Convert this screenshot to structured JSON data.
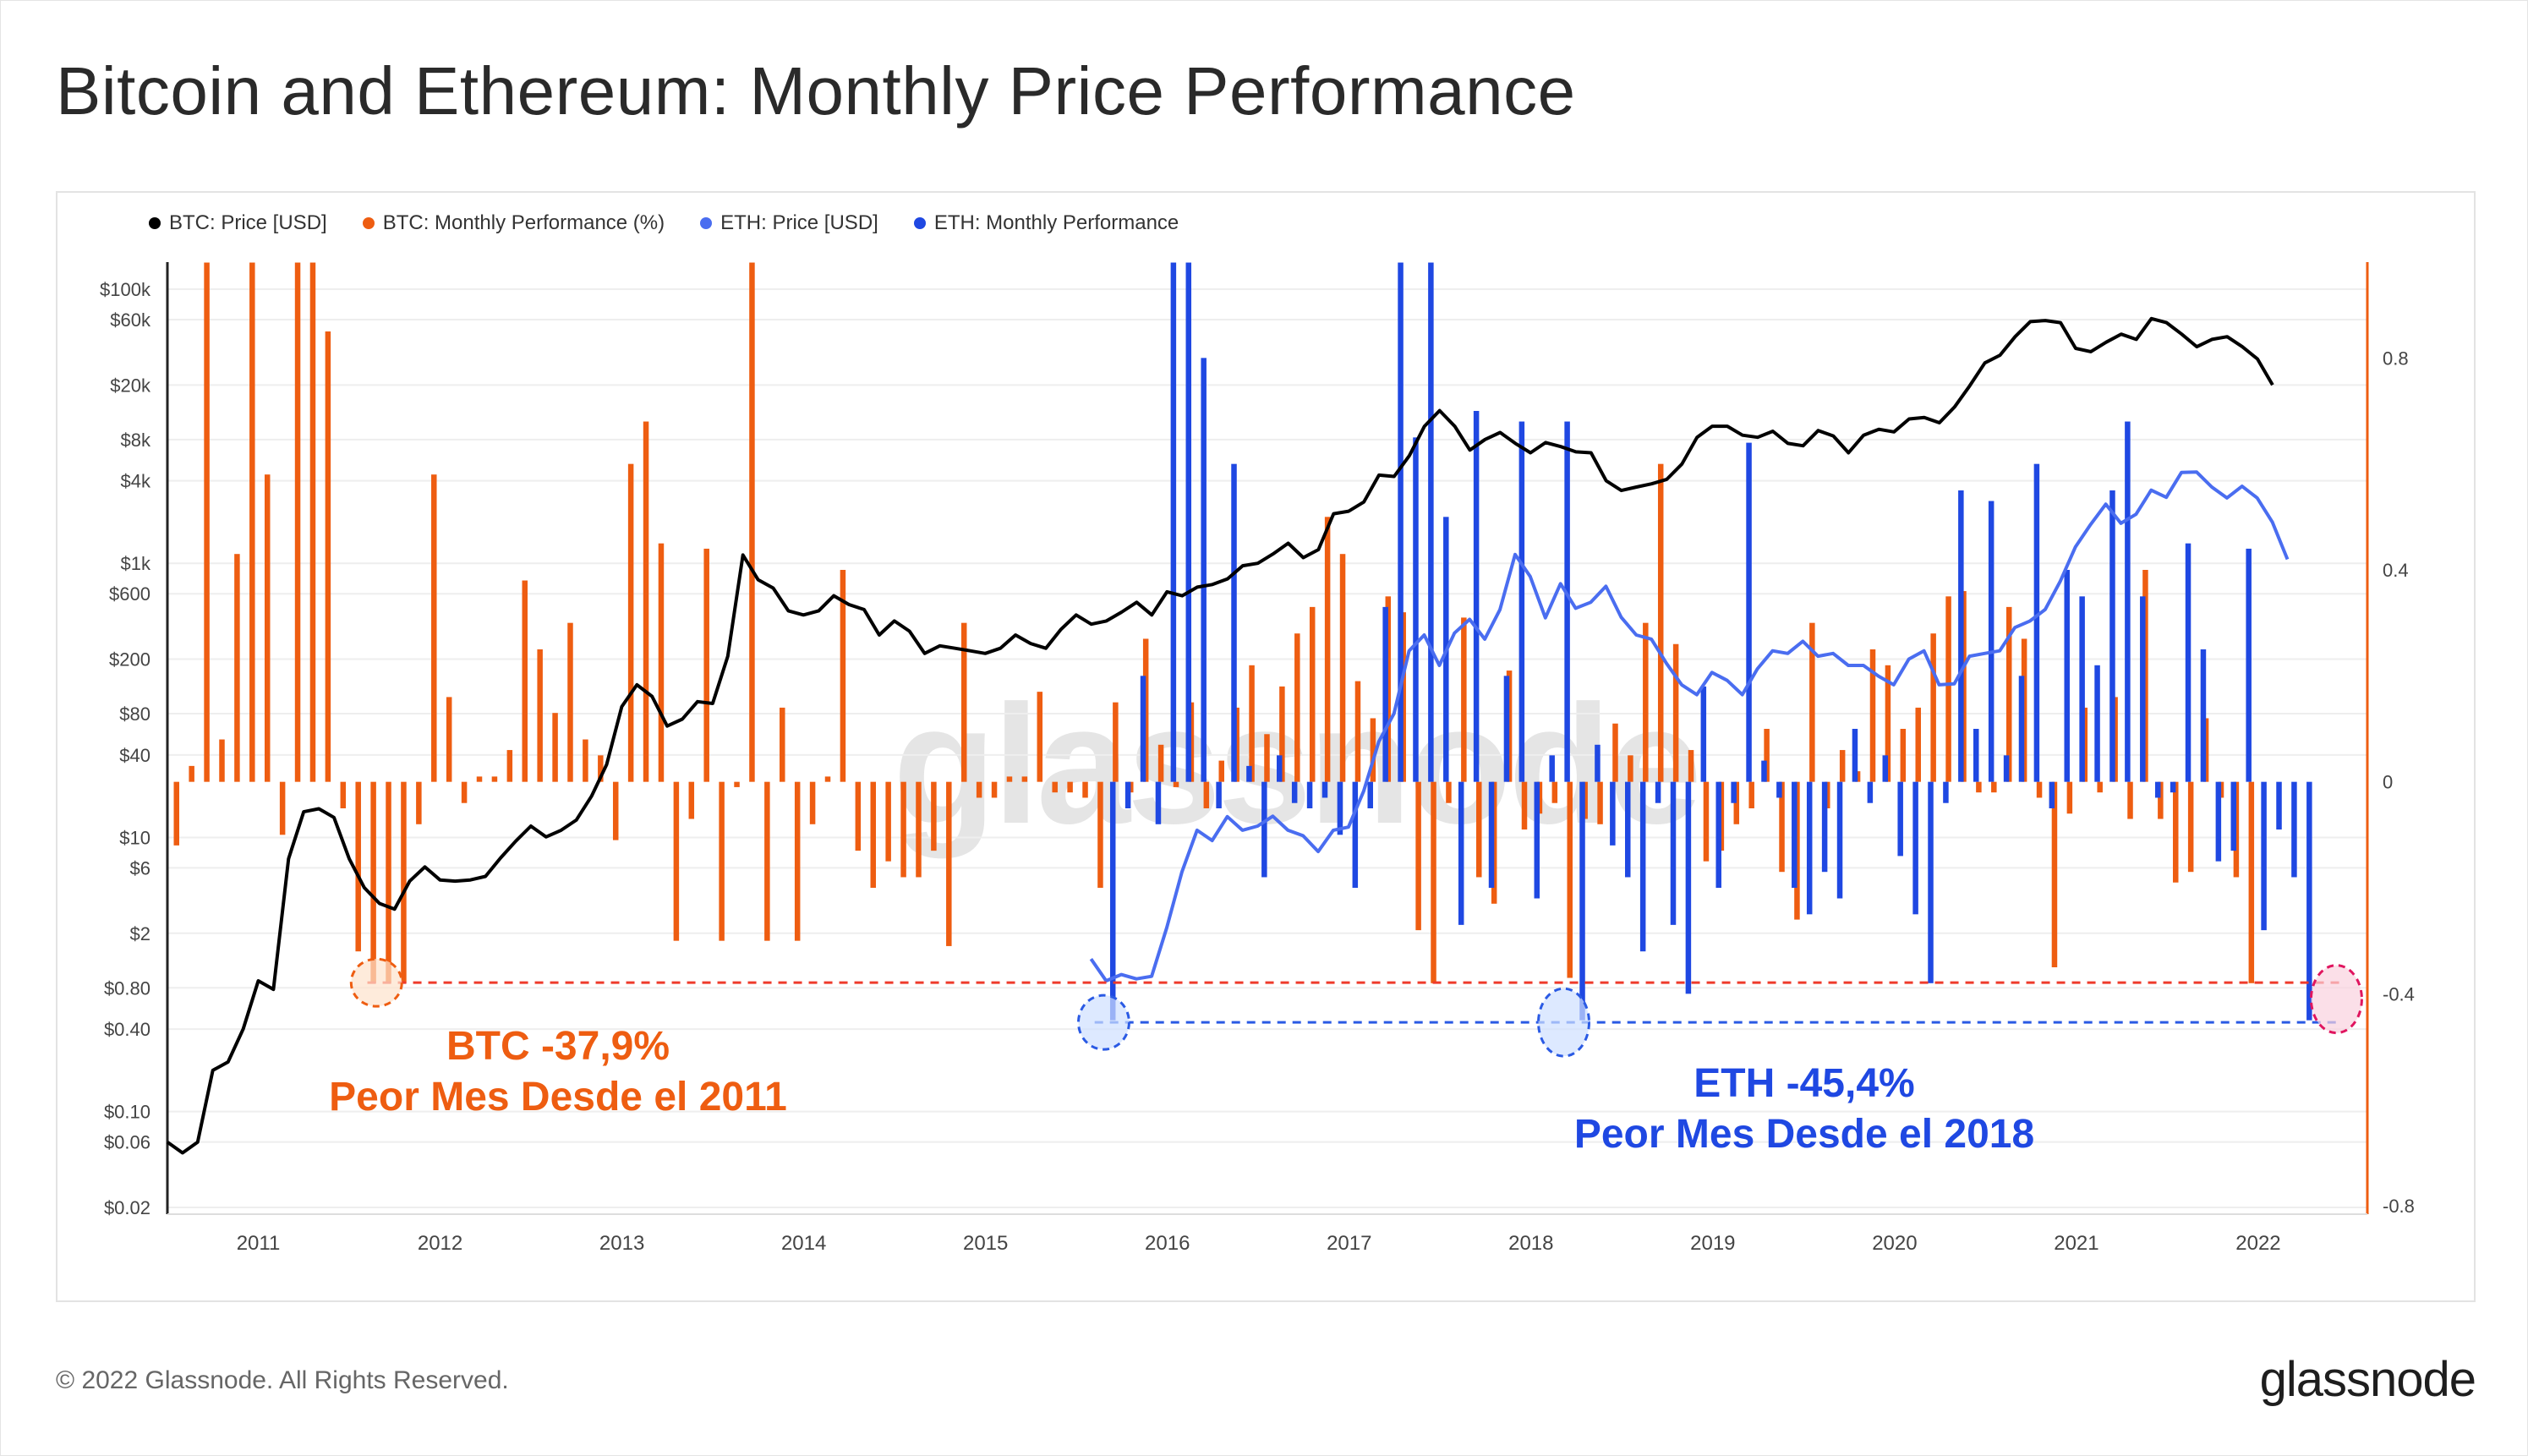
{
  "title": "Bitcoin and Ethereum: Monthly Price Performance",
  "footer": {
    "copyright": "© 2022 Glassnode. All Rights Reserved.",
    "brand": "glassnode"
  },
  "watermark": "glassnode",
  "colors": {
    "btc_price": "#000000",
    "btc_perf": "#ee5d11",
    "eth_price": "#4a6df0",
    "eth_perf": "#1f48e2",
    "btc_ref": "#ee3b2b",
    "eth_ref": "#2a5ae4",
    "highlight": "#f07fa0"
  },
  "legend": [
    {
      "label": "BTC: Price [USD]",
      "color": "#000000"
    },
    {
      "label": "BTC: Monthly Performance (%)",
      "color": "#ee5d11"
    },
    {
      "label": "ETH: Price [USD]",
      "color": "#4a6df0"
    },
    {
      "label": "ETH: Monthly Performance",
      "color": "#1f48e2"
    }
  ],
  "annotations": {
    "btc_line1": "BTC -37,9%",
    "btc_line2": "Peor Mes Desde el 2011",
    "eth_line1": "ETH -45,4%",
    "eth_line2": "Peor Mes Desde el 2018"
  },
  "chart_data": {
    "type": "bar+line",
    "title": "Bitcoin and Ethereum: Monthly Price Performance",
    "x_range": [
      2010.5,
      2022.6
    ],
    "x_ticks": [
      2011,
      2012,
      2013,
      2014,
      2015,
      2016,
      2017,
      2018,
      2019,
      2020,
      2021,
      2022
    ],
    "left_axis": {
      "scale": "log",
      "unit": "USD",
      "range": [
        0.02,
        100000
      ],
      "ticks": [
        {
          "v": 0.02,
          "label": "$0.02"
        },
        {
          "v": 0.06,
          "label": "$0.06"
        },
        {
          "v": 0.1,
          "label": "$0.10"
        },
        {
          "v": 0.4,
          "label": "$0.40"
        },
        {
          "v": 0.8,
          "label": "$0.80"
        },
        {
          "v": 2,
          "label": "$2"
        },
        {
          "v": 6,
          "label": "$6"
        },
        {
          "v": 10,
          "label": "$10"
        },
        {
          "v": 40,
          "label": "$40"
        },
        {
          "v": 80,
          "label": "$80"
        },
        {
          "v": 200,
          "label": "$200"
        },
        {
          "v": 600,
          "label": "$600"
        },
        {
          "v": 1000,
          "label": "$1k"
        },
        {
          "v": 4000,
          "label": "$4k"
        },
        {
          "v": 8000,
          "label": "$8k"
        },
        {
          "v": 20000,
          "label": "$20k"
        },
        {
          "v": 60000,
          "label": "$60k"
        },
        {
          "v": 100000,
          "label": "$100k"
        }
      ]
    },
    "right_axis": {
      "scale": "linear",
      "unit": "fraction",
      "range": [
        -0.8,
        1.0
      ],
      "clip_max": 0.98,
      "ticks": [
        {
          "v": 0.8,
          "label": "0.8"
        },
        {
          "v": 0.4,
          "label": "0.4"
        },
        {
          "v": 0,
          "label": "0"
        },
        {
          "v": -0.4,
          "label": "-0.4"
        },
        {
          "v": -0.8,
          "label": "-0.8"
        }
      ]
    },
    "reference_lines": [
      {
        "series": "BTC",
        "value": -0.379,
        "from": 2011.6,
        "to": 2022.45
      },
      {
        "series": "ETH",
        "value": -0.454,
        "from": 2015.6,
        "to": 2022.45
      }
    ],
    "highlight_points": [
      {
        "series": "BTC",
        "x": 2011.65,
        "value": -0.379
      },
      {
        "series": "ETH",
        "x": 2015.65,
        "value": -0.454
      },
      {
        "series": "ETH",
        "x": 2018.18,
        "value": -0.454
      },
      {
        "series": "BOTH",
        "x": 2022.43,
        "value": -0.41
      }
    ],
    "series": [
      {
        "name": "BTC: Price [USD]",
        "kind": "line",
        "axis": "left",
        "start": 2010.5,
        "step": 0.0833,
        "values": [
          0.06,
          0.05,
          0.06,
          0.2,
          0.23,
          0.4,
          0.9,
          0.78,
          7.0,
          15.4,
          16.2,
          14,
          7,
          4.3,
          3.3,
          3,
          4.8,
          6.1,
          4.9,
          4.8,
          4.9,
          5.2,
          7.1,
          9.4,
          12.1,
          10.1,
          11.3,
          13.4,
          20,
          34,
          90,
          130,
          107,
          65,
          73,
          98,
          95,
          210,
          1150,
          760,
          660,
          450,
          420,
          450,
          580,
          500,
          460,
          300,
          380,
          320,
          220,
          250,
          240,
          230,
          220,
          240,
          300,
          260,
          240,
          330,
          420,
          360,
          380,
          440,
          520,
          420,
          620,
          580,
          670,
          700,
          770,
          960,
          1000,
          1170,
          1400,
          1100,
          1260,
          2300,
          2400,
          2800,
          4400,
          4300,
          6100,
          10000,
          13000,
          10000,
          6700,
          8000,
          9000,
          7500,
          6400,
          7600,
          7100,
          6500,
          6400,
          4000,
          3400,
          3600,
          3800,
          4100,
          5300,
          8300,
          10000,
          10000,
          8600,
          8300,
          9200,
          7500,
          7200,
          9300,
          8500,
          6400,
          8600,
          9500,
          9100,
          11300,
          11600,
          10600,
          13800,
          19700,
          29000,
          33000,
          45000,
          58000,
          59000,
          57000,
          37000,
          35000,
          41000,
          47000,
          43000,
          61000,
          57000,
          47000,
          38000,
          43000,
          45000,
          38000,
          31000,
          20000
        ]
      },
      {
        "name": "ETH: Price [USD]",
        "kind": "line",
        "axis": "left",
        "start": 2015.58,
        "step": 0.0833,
        "values": [
          1.3,
          0.9,
          1.0,
          0.93,
          0.97,
          2.2,
          5.6,
          11.3,
          9.5,
          14.2,
          11.3,
          12.1,
          14.3,
          11.3,
          10.3,
          7.9,
          11.3,
          11.9,
          21.7,
          50,
          80,
          230,
          300,
          180,
          310,
          390,
          280,
          460,
          1160,
          800,
          400,
          710,
          470,
          520,
          680,
          405,
          300,
          280,
          186,
          130,
          110,
          160,
          140,
          110,
          170,
          230,
          220,
          270,
          210,
          220,
          180,
          180,
          150,
          130,
          200,
          230,
          130,
          132,
          210,
          220,
          230,
          340,
          380,
          460,
          740,
          1320,
          1920,
          2700,
          1960,
          2280,
          3420,
          3030,
          4600,
          4630,
          3600,
          3000,
          3650,
          3000,
          2000,
          1070
        ]
      },
      {
        "name": "BTC: Monthly Performance (%)",
        "kind": "bar",
        "axis": "right",
        "start": 2010.55,
        "step": 0.0833,
        "values": [
          -0.12,
          0.03,
          0.98,
          0.08,
          0.43,
          0.98,
          0.58,
          -0.1,
          0.98,
          0.98,
          0.85,
          -0.05,
          -0.32,
          -0.38,
          -0.38,
          -0.38,
          -0.08,
          0.58,
          0.16,
          -0.04,
          0.01,
          0.01,
          0.06,
          0.38,
          0.25,
          0.13,
          0.3,
          0.08,
          0.05,
          -0.11,
          0.6,
          0.68,
          0.45,
          -0.3,
          -0.07,
          0.44,
          -0.3,
          -0.01,
          0.98,
          -0.3,
          0.14,
          -0.3,
          -0.08,
          0.01,
          0.4,
          -0.13,
          -0.2,
          -0.15,
          -0.18,
          -0.18,
          -0.13,
          -0.31,
          0.3,
          -0.03,
          -0.03,
          0.01,
          0.01,
          0.17,
          -0.02,
          -0.02,
          -0.03,
          -0.2,
          0.15,
          -0.02,
          0.27,
          0.07,
          -0.01,
          0.15,
          -0.05,
          0.04,
          0.14,
          0.22,
          0.09,
          0.18,
          0.28,
          0.33,
          0.5,
          0.43,
          0.19,
          0.12,
          0.35,
          0.32,
          -0.28,
          -0.38,
          -0.04,
          0.31,
          -0.18,
          -0.23,
          0.21,
          -0.09,
          -0.06,
          -0.04,
          -0.37,
          -0.07,
          -0.08,
          0.11,
          0.05,
          0.3,
          0.6,
          0.26,
          0.06,
          -0.15,
          -0.13,
          -0.08,
          -0.05,
          0.1,
          -0.17,
          -0.26,
          0.3,
          -0.05,
          0.06,
          0.02,
          0.25,
          0.22,
          0.1,
          0.14,
          0.28,
          0.35,
          0.36,
          -0.02,
          -0.02,
          0.33,
          0.27,
          -0.03,
          -0.35,
          -0.06,
          0.14,
          -0.02,
          0.16,
          -0.07,
          0.4,
          -0.07,
          -0.19,
          -0.17,
          0.12,
          -0.03,
          -0.18,
          -0.38
        ]
      },
      {
        "name": "ETH: Monthly Performance",
        "kind": "bar",
        "axis": "right",
        "start": 2015.7,
        "step": 0.0833,
        "values": [
          -0.45,
          -0.05,
          0.2,
          -0.08,
          0.98,
          0.98,
          0.8,
          -0.05,
          0.6,
          0.03,
          -0.18,
          0.05,
          -0.04,
          -0.05,
          -0.03,
          -0.1,
          -0.2,
          -0.05,
          0.33,
          0.98,
          0.65,
          0.98,
          0.5,
          -0.27,
          0.7,
          -0.2,
          0.2,
          0.68,
          -0.22,
          0.05,
          0.68,
          -0.45,
          0.07,
          -0.12,
          -0.18,
          -0.32,
          -0.04,
          -0.27,
          -0.4,
          0.18,
          -0.2,
          -0.04,
          0.64,
          0.04,
          -0.03,
          -0.2,
          -0.25,
          -0.17,
          -0.22,
          0.1,
          -0.04,
          0.05,
          -0.14,
          -0.25,
          -0.38,
          -0.04,
          0.55,
          0.1,
          0.53,
          0.05,
          0.2,
          0.6,
          -0.05,
          0.4,
          0.35,
          0.22,
          0.55,
          0.68,
          0.35,
          -0.03,
          -0.02,
          0.45,
          0.25,
          -0.15,
          -0.13,
          0.44,
          -0.28,
          -0.09,
          -0.18,
          -0.45
        ]
      }
    ]
  }
}
